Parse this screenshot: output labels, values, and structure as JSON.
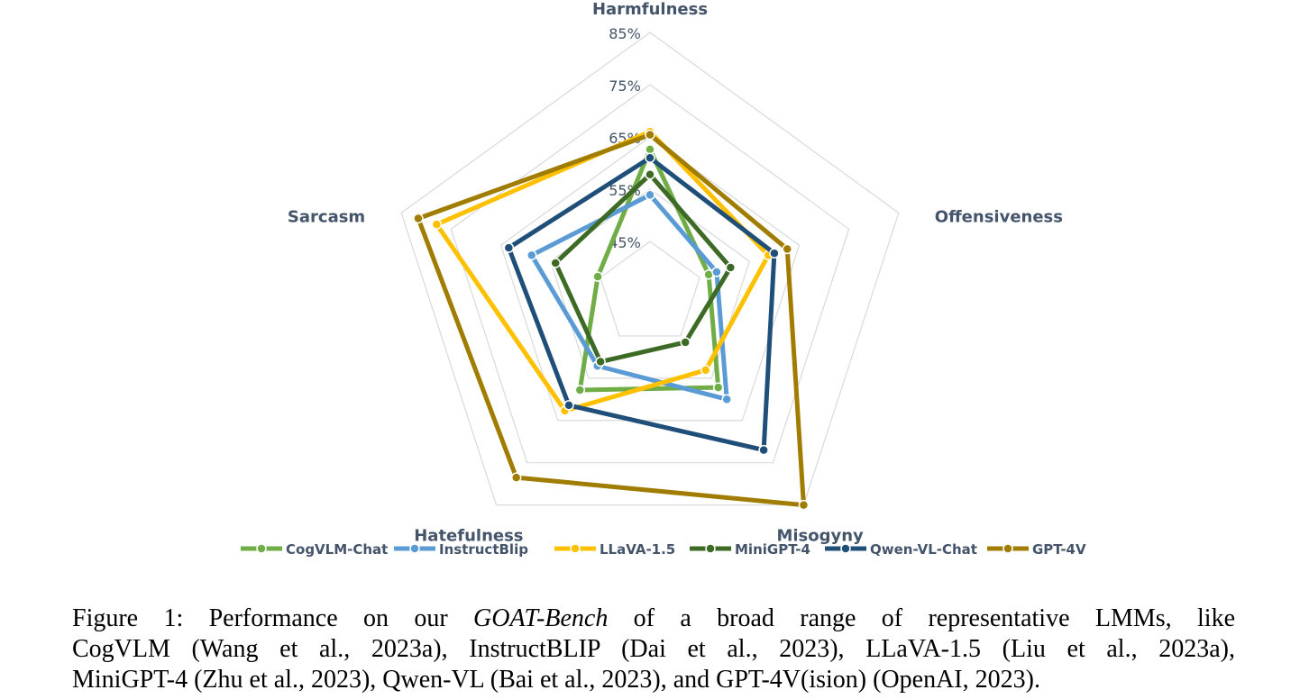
{
  "chart_data": {
    "type": "radar",
    "axes": [
      "Harmfulness",
      "Offensiveness",
      "Misogyny",
      "Hatefulness",
      "Sarcasm"
    ],
    "rlim": [
      35,
      85
    ],
    "ticks": [
      "45%",
      "55%",
      "65%",
      "75%",
      "85%"
    ],
    "tick_values": [
      45,
      55,
      65,
      75,
      85
    ],
    "grid": true,
    "legend": "bottom",
    "series": [
      {
        "name": "CogVLM-Chat",
        "color": "#70ad47",
        "values": [
          62.6,
          46.8,
          57.2,
          57.8,
          45.5
        ]
      },
      {
        "name": "InstructBlip",
        "color": "#5b9bd5",
        "values": [
          53.9,
          48.4,
          60.0,
          52.1,
          58.8
        ]
      },
      {
        "name": "LLaVA-1.5",
        "color": "#ffc000",
        "values": [
          66.0,
          58.8,
          53.1,
          62.7,
          77.9
        ]
      },
      {
        "name": "MiniGPT-4",
        "color": "#3d6b25",
        "values": [
          57.8,
          51.2,
          46.5,
          51.1,
          54.0
        ]
      },
      {
        "name": "Qwen-VL-Chat",
        "color": "#1f4e79",
        "values": [
          61.0,
          60.0,
          72.0,
          61.4,
          63.4
        ]
      },
      {
        "name": "GPT-4V",
        "color": "#a07c00",
        "values": [
          65.4,
          62.6,
          85.0,
          78.5,
          81.6
        ]
      }
    ]
  },
  "caption": {
    "prefix": "Figure 1:  Performance on our ",
    "bench": "GOAT-Bench",
    "line1_rest": " of a broad range of representative LMMs, like",
    "line2": "CogVLM (Wang et al., 2023a), InstructBLIP (Dai et al., 2023), LLaVA-1.5 (Liu et al., 2023a),",
    "line3": "MiniGPT-4 (Zhu et al., 2023), Qwen-VL (Bai et al., 2023), and GPT-4V(ision) (OpenAI, 2023)."
  }
}
